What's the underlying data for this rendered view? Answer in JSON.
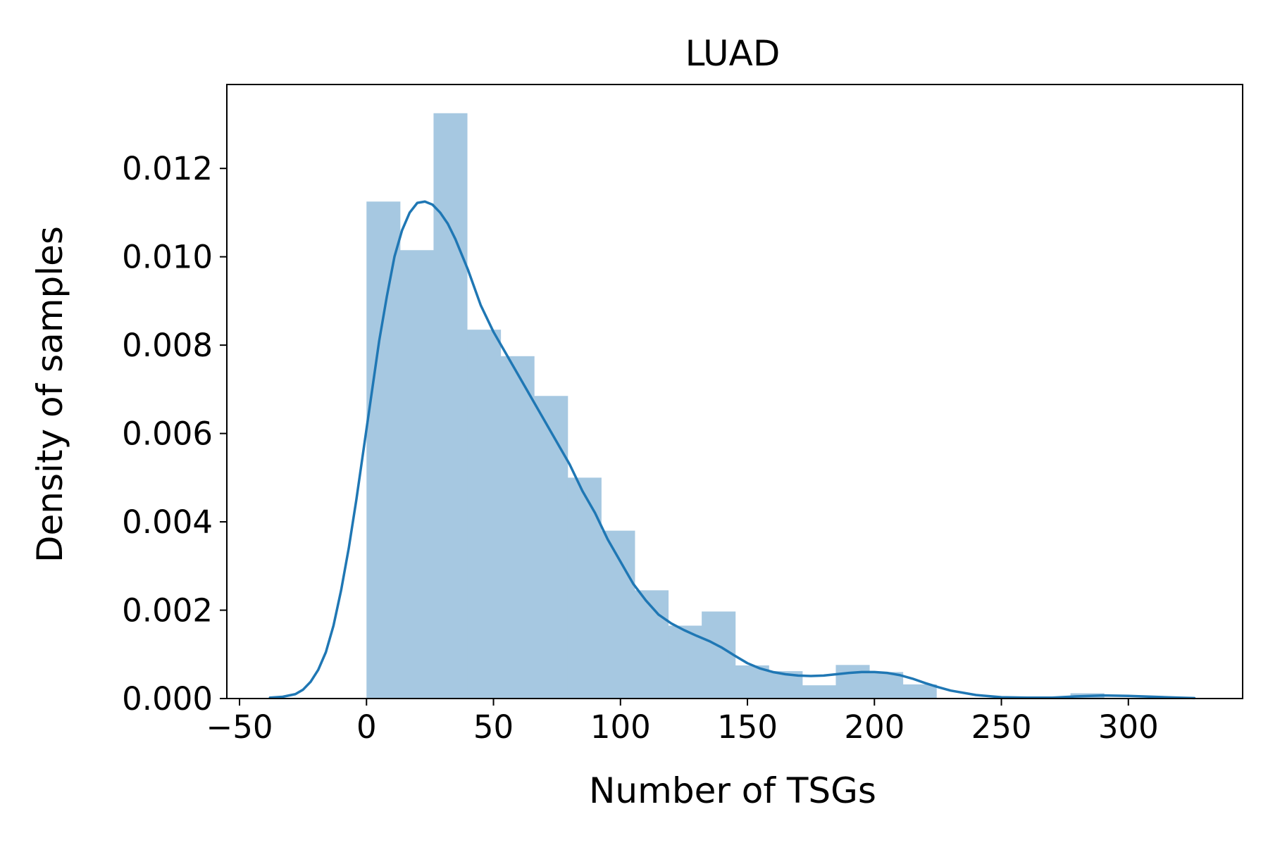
{
  "chart_data": {
    "type": "bar",
    "title": "LUAD",
    "xlabel": "Number of TSGs",
    "ylabel": "Density of samples",
    "xlim": [
      -55,
      345
    ],
    "ylim": [
      0,
      0.0139
    ],
    "x_ticks": [
      -50,
      0,
      50,
      100,
      150,
      200,
      250,
      300
    ],
    "x_tick_labels": [
      "−50",
      "0",
      "50",
      "100",
      "150",
      "200",
      "250",
      "300"
    ],
    "y_ticks": [
      0,
      0.002,
      0.004,
      0.006,
      0.008,
      0.01,
      0.012
    ],
    "y_tick_labels": [
      "0.000",
      "0.002",
      "0.004",
      "0.006",
      "0.008",
      "0.010",
      "0.012"
    ],
    "grid": false,
    "histogram": {
      "bin_edges": [
        0,
        13.2,
        26.4,
        39.6,
        52.8,
        66.0,
        79.2,
        92.4,
        105.6,
        118.8,
        132.0,
        145.2,
        158.4,
        171.6,
        184.8,
        198.0,
        211.2,
        224.4,
        237.6,
        250.8,
        264.0,
        277.2,
        290.4
      ],
      "density": [
        0.01125,
        0.01015,
        0.01325,
        0.00835,
        0.00775,
        0.00685,
        0.005,
        0.0038,
        0.00245,
        0.00165,
        0.00197,
        0.00075,
        0.00062,
        0.0003,
        0.00076,
        0.0006,
        0.00032,
        0.0,
        0.0,
        0.0,
        0.0,
        0.00012
      ],
      "color": "#a6c8e1"
    },
    "kde": {
      "x": [
        -38,
        -33,
        -28,
        -25,
        -22,
        -19,
        -16,
        -13,
        -10,
        -7,
        -4,
        -1,
        2,
        5,
        8,
        11,
        14,
        17,
        20,
        23,
        26,
        29,
        32,
        35,
        40,
        45,
        50,
        55,
        60,
        65,
        70,
        75,
        80,
        85,
        90,
        95,
        100,
        105,
        110,
        115,
        120,
        125,
        130,
        135,
        140,
        145,
        150,
        155,
        160,
        165,
        170,
        175,
        180,
        185,
        190,
        195,
        200,
        205,
        210,
        215,
        220,
        225,
        230,
        240,
        250,
        260,
        270,
        280,
        290,
        300,
        310,
        320,
        326
      ],
      "y": [
        2e-05,
        4e-05,
        0.0001,
        0.0002,
        0.00038,
        0.00065,
        0.00105,
        0.00165,
        0.00245,
        0.0034,
        0.0045,
        0.0057,
        0.0069,
        0.0081,
        0.0091,
        0.01,
        0.0106,
        0.011,
        0.01122,
        0.01125,
        0.01118,
        0.011,
        0.01075,
        0.0104,
        0.0097,
        0.0089,
        0.0083,
        0.0078,
        0.0073,
        0.0068,
        0.0063,
        0.0058,
        0.0053,
        0.0047,
        0.0042,
        0.0036,
        0.0031,
        0.0026,
        0.00222,
        0.0019,
        0.0017,
        0.00155,
        0.00142,
        0.0013,
        0.00115,
        0.00097,
        0.0008,
        0.00068,
        0.0006,
        0.00055,
        0.00052,
        0.00051,
        0.00052,
        0.00055,
        0.00058,
        0.0006,
        0.0006,
        0.00058,
        0.00053,
        0.00045,
        0.00035,
        0.00026,
        0.00018,
        8e-05,
        3e-05,
        2e-05,
        2e-05,
        5e-05,
        7e-05,
        6e-05,
        4e-05,
        2e-05,
        1e-05
      ],
      "color": "#1f77b4"
    }
  }
}
